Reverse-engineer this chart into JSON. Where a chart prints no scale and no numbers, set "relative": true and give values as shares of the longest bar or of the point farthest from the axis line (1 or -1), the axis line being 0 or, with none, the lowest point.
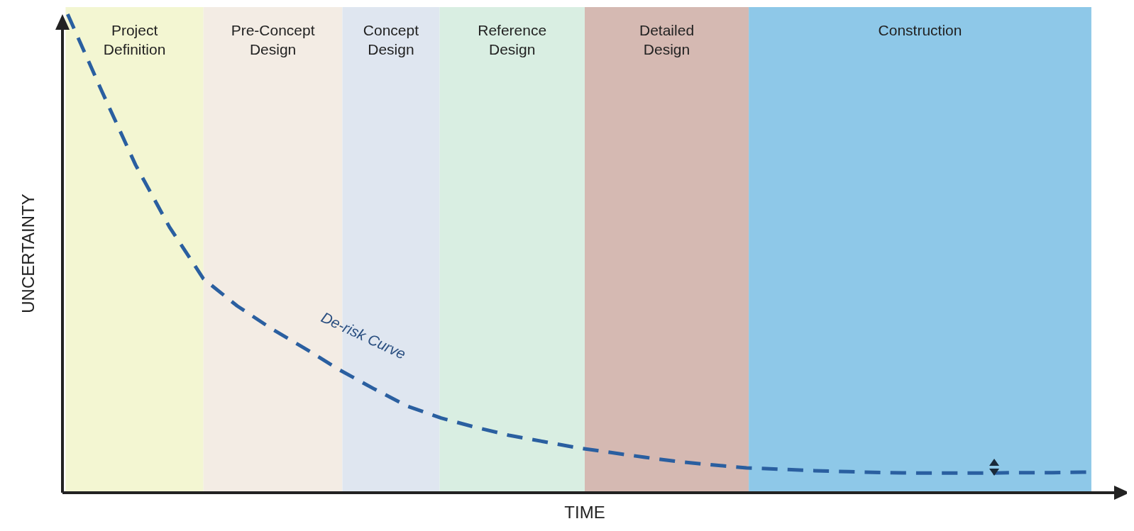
{
  "chart_data": {
    "type": "line",
    "relative": true,
    "xlabel": "TIME",
    "ylabel": "UNCERTAINTY",
    "line_style": "dashed",
    "categories": [
      null,
      null,
      null,
      null,
      null,
      null,
      null,
      null,
      null,
      null,
      null,
      null,
      null,
      null,
      null,
      null,
      null,
      null,
      null,
      null,
      null,
      null,
      null,
      null,
      null,
      null,
      null,
      null,
      null,
      null,
      null
    ],
    "series": [
      {
        "color": "#2a5fa0",
        "values": [
          1.0,
          0.84,
          0.685,
          0.555,
          0.447,
          0.39,
          0.343,
          0.301,
          0.257,
          0.218,
          0.181,
          0.156,
          0.137,
          0.12,
          0.107,
          0.094,
          0.084,
          0.074,
          0.065,
          0.058,
          0.052,
          0.049,
          0.046,
          0.044,
          0.042,
          0.041,
          0.041,
          0.041,
          0.042,
          0.042,
          0.043
        ]
      }
    ],
    "annotations": [
      "Project Definition",
      "Pre-Concept Design",
      "Concept Design",
      "Reference Design",
      "Detailed Design",
      "Construction",
      "De-risk Curve"
    ]
  }
}
